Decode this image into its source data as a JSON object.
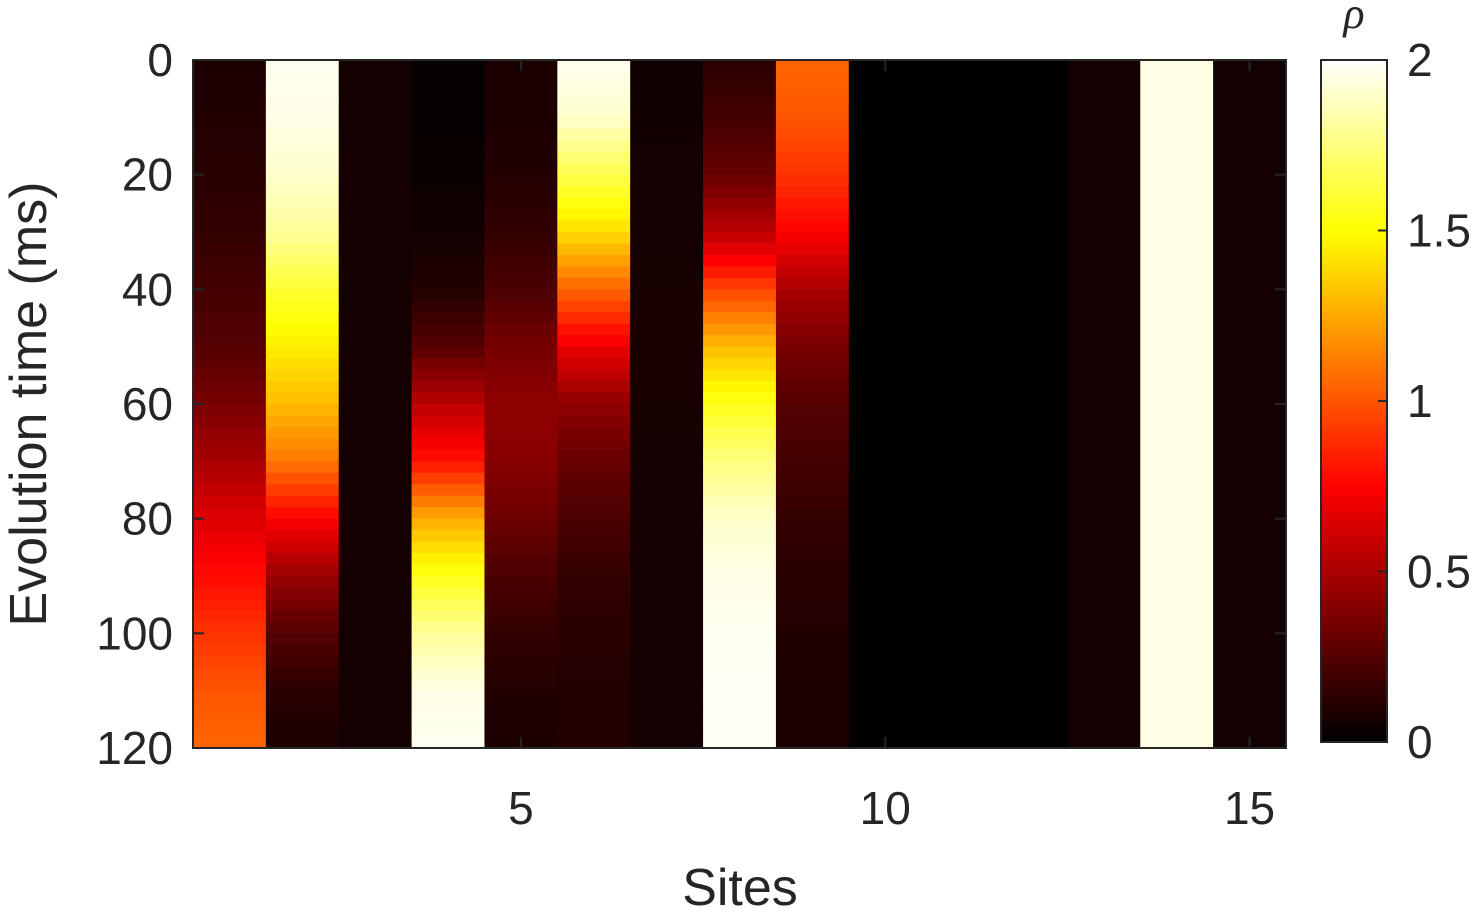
{
  "chart_data": {
    "type": "heatmap",
    "title": "",
    "xlabel": "Sites",
    "ylabel": "Evolution time (ms)",
    "x_ticks": [
      5,
      10,
      15
    ],
    "y_ticks": [
      0,
      20,
      40,
      60,
      80,
      100,
      120
    ],
    "xlim": [
      0.5,
      15.5
    ],
    "ylim": [
      0,
      120
    ],
    "y_reversed": true,
    "colormap": "hot",
    "colorbar": {
      "title": "ρ",
      "ticks": [
        0,
        0.5,
        1,
        1.5,
        2
      ],
      "range": [
        0,
        2
      ],
      "colors": [
        "#000000",
        "#ff0000",
        "#ffff00",
        "#ffffff"
      ]
    },
    "sites": [
      1,
      2,
      3,
      4,
      5,
      6,
      7,
      8,
      9,
      10,
      11,
      12,
      13,
      14,
      15
    ],
    "times": [
      0,
      10,
      20,
      30,
      40,
      50,
      60,
      70,
      80,
      90,
      100,
      110,
      120
    ],
    "values": [
      [
        0.08,
        1.97,
        0.06,
        0.02,
        0.08,
        1.97,
        0.05,
        0.12,
        1.05,
        0.0,
        0.0,
        0.0,
        0.06,
        1.95,
        0.06
      ],
      [
        0.1,
        1.95,
        0.06,
        0.02,
        0.08,
        1.9,
        0.05,
        0.2,
        1.0,
        0.0,
        0.0,
        0.0,
        0.06,
        1.95,
        0.06
      ],
      [
        0.12,
        1.9,
        0.06,
        0.03,
        0.1,
        1.65,
        0.06,
        0.3,
        0.9,
        0.0,
        0.0,
        0.0,
        0.06,
        1.95,
        0.06
      ],
      [
        0.15,
        1.8,
        0.06,
        0.05,
        0.15,
        1.4,
        0.06,
        0.55,
        0.75,
        0.0,
        0.0,
        0.0,
        0.06,
        1.95,
        0.06
      ],
      [
        0.2,
        1.6,
        0.06,
        0.1,
        0.22,
        1.05,
        0.07,
        0.95,
        0.5,
        0.0,
        0.0,
        0.0,
        0.06,
        1.95,
        0.06
      ],
      [
        0.25,
        1.45,
        0.06,
        0.25,
        0.35,
        0.7,
        0.07,
        1.3,
        0.35,
        0.0,
        0.0,
        0.0,
        0.06,
        1.95,
        0.06
      ],
      [
        0.35,
        1.3,
        0.06,
        0.55,
        0.42,
        0.42,
        0.07,
        1.55,
        0.25,
        0.0,
        0.0,
        0.0,
        0.06,
        1.95,
        0.06
      ],
      [
        0.5,
        1.1,
        0.06,
        0.8,
        0.4,
        0.3,
        0.06,
        1.75,
        0.2,
        0.0,
        0.0,
        0.0,
        0.06,
        1.95,
        0.06
      ],
      [
        0.65,
        0.75,
        0.06,
        1.25,
        0.32,
        0.22,
        0.06,
        1.9,
        0.15,
        0.0,
        0.0,
        0.0,
        0.06,
        1.95,
        0.06
      ],
      [
        0.78,
        0.45,
        0.06,
        1.55,
        0.22,
        0.15,
        0.06,
        1.95,
        0.12,
        0.0,
        0.0,
        0.0,
        0.06,
        1.95,
        0.06
      ],
      [
        0.9,
        0.25,
        0.06,
        1.8,
        0.15,
        0.12,
        0.06,
        1.97,
        0.1,
        0.0,
        0.0,
        0.0,
        0.06,
        1.95,
        0.06
      ],
      [
        1.0,
        0.12,
        0.06,
        1.95,
        0.1,
        0.1,
        0.06,
        1.98,
        0.08,
        0.0,
        0.0,
        0.0,
        0.06,
        1.95,
        0.06
      ],
      [
        1.05,
        0.08,
        0.06,
        1.97,
        0.08,
        0.1,
        0.06,
        1.98,
        0.08,
        0.0,
        0.0,
        0.0,
        0.06,
        1.95,
        0.06
      ]
    ]
  }
}
